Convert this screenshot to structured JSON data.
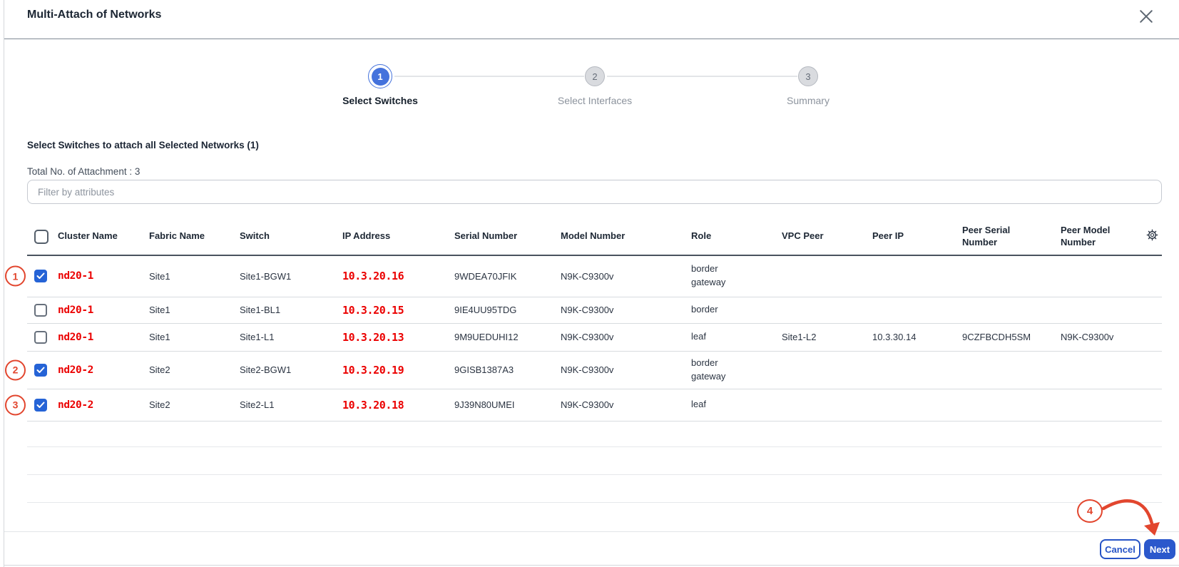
{
  "dialog": {
    "title": "Multi-Attach of Networks"
  },
  "stepper": {
    "steps": [
      {
        "num": "1",
        "label": "Select Switches",
        "state": "active"
      },
      {
        "num": "2",
        "label": "Select Interfaces",
        "state": "upcoming"
      },
      {
        "num": "3",
        "label": "Summary",
        "state": "upcoming"
      }
    ]
  },
  "selection": {
    "heading": "Select Switches to attach all Selected Networks (1)",
    "total_label": "Total No. of Attachment : 3"
  },
  "filter": {
    "placeholder": "Filter by attributes"
  },
  "table": {
    "columns": [
      "Cluster Name",
      "Fabric Name",
      "Switch",
      "IP Address",
      "Serial Number",
      "Model Number",
      "Role",
      "VPC Peer",
      "Peer IP",
      "Peer Serial Number",
      "Peer Model Number"
    ],
    "settings_icon": "gear-icon",
    "rows": [
      {
        "callout": "1",
        "checked": true,
        "cluster_name": "nd20-1",
        "fabric_name": "Site1",
        "switch": "Site1-BGW1",
        "ip_address": "10.3.20.16",
        "serial_number": "9WDEA70JFIK",
        "model_number": "N9K-C9300v",
        "role": "border gateway",
        "vpc_peer": "",
        "peer_ip": "",
        "peer_serial_number": "",
        "peer_model_number": ""
      },
      {
        "callout": "",
        "checked": false,
        "cluster_name": "nd20-1",
        "fabric_name": "Site1",
        "switch": "Site1-BL1",
        "ip_address": "10.3.20.15",
        "serial_number": "9IE4UU95TDG",
        "model_number": "N9K-C9300v",
        "role": "border",
        "vpc_peer": "",
        "peer_ip": "",
        "peer_serial_number": "",
        "peer_model_number": ""
      },
      {
        "callout": "",
        "checked": false,
        "cluster_name": "nd20-1",
        "fabric_name": "Site1",
        "switch": "Site1-L1",
        "ip_address": "10.3.20.13",
        "serial_number": "9M9UEDUHI12",
        "model_number": "N9K-C9300v",
        "role": "leaf",
        "vpc_peer": "Site1-L2",
        "peer_ip": "10.3.30.14",
        "peer_serial_number": "9CZFBCDH5SM",
        "peer_model_number": "N9K-C9300v"
      },
      {
        "callout": "2",
        "checked": true,
        "cluster_name": "nd20-2",
        "fabric_name": "Site2",
        "switch": "Site2-BGW1",
        "ip_address": "10.3.20.19",
        "serial_number": "9GISB1387A3",
        "model_number": "N9K-C9300v",
        "role": "border gateway",
        "vpc_peer": "",
        "peer_ip": "",
        "peer_serial_number": "",
        "peer_model_number": ""
      },
      {
        "callout": "3",
        "checked": true,
        "cluster_name": "nd20-2",
        "fabric_name": "Site2",
        "switch": "Site2-L1",
        "ip_address": "10.3.20.18",
        "serial_number": "9J39N80UMEI",
        "model_number": "N9K-C9300v",
        "role": "leaf",
        "vpc_peer": "",
        "peer_ip": "",
        "peer_serial_number": "",
        "peer_model_number": ""
      }
    ],
    "empty_row_count": 3
  },
  "footer": {
    "cancel_label": "Cancel",
    "next_label": "Next"
  },
  "annotations": {
    "callout_4": "4"
  },
  "colors": {
    "step_blue": "#4472dc",
    "checkbox_blue": "#2563d6",
    "button_blue": "#2b58cc",
    "red_text": "#eb0000",
    "callout_red": "#e2462e"
  }
}
